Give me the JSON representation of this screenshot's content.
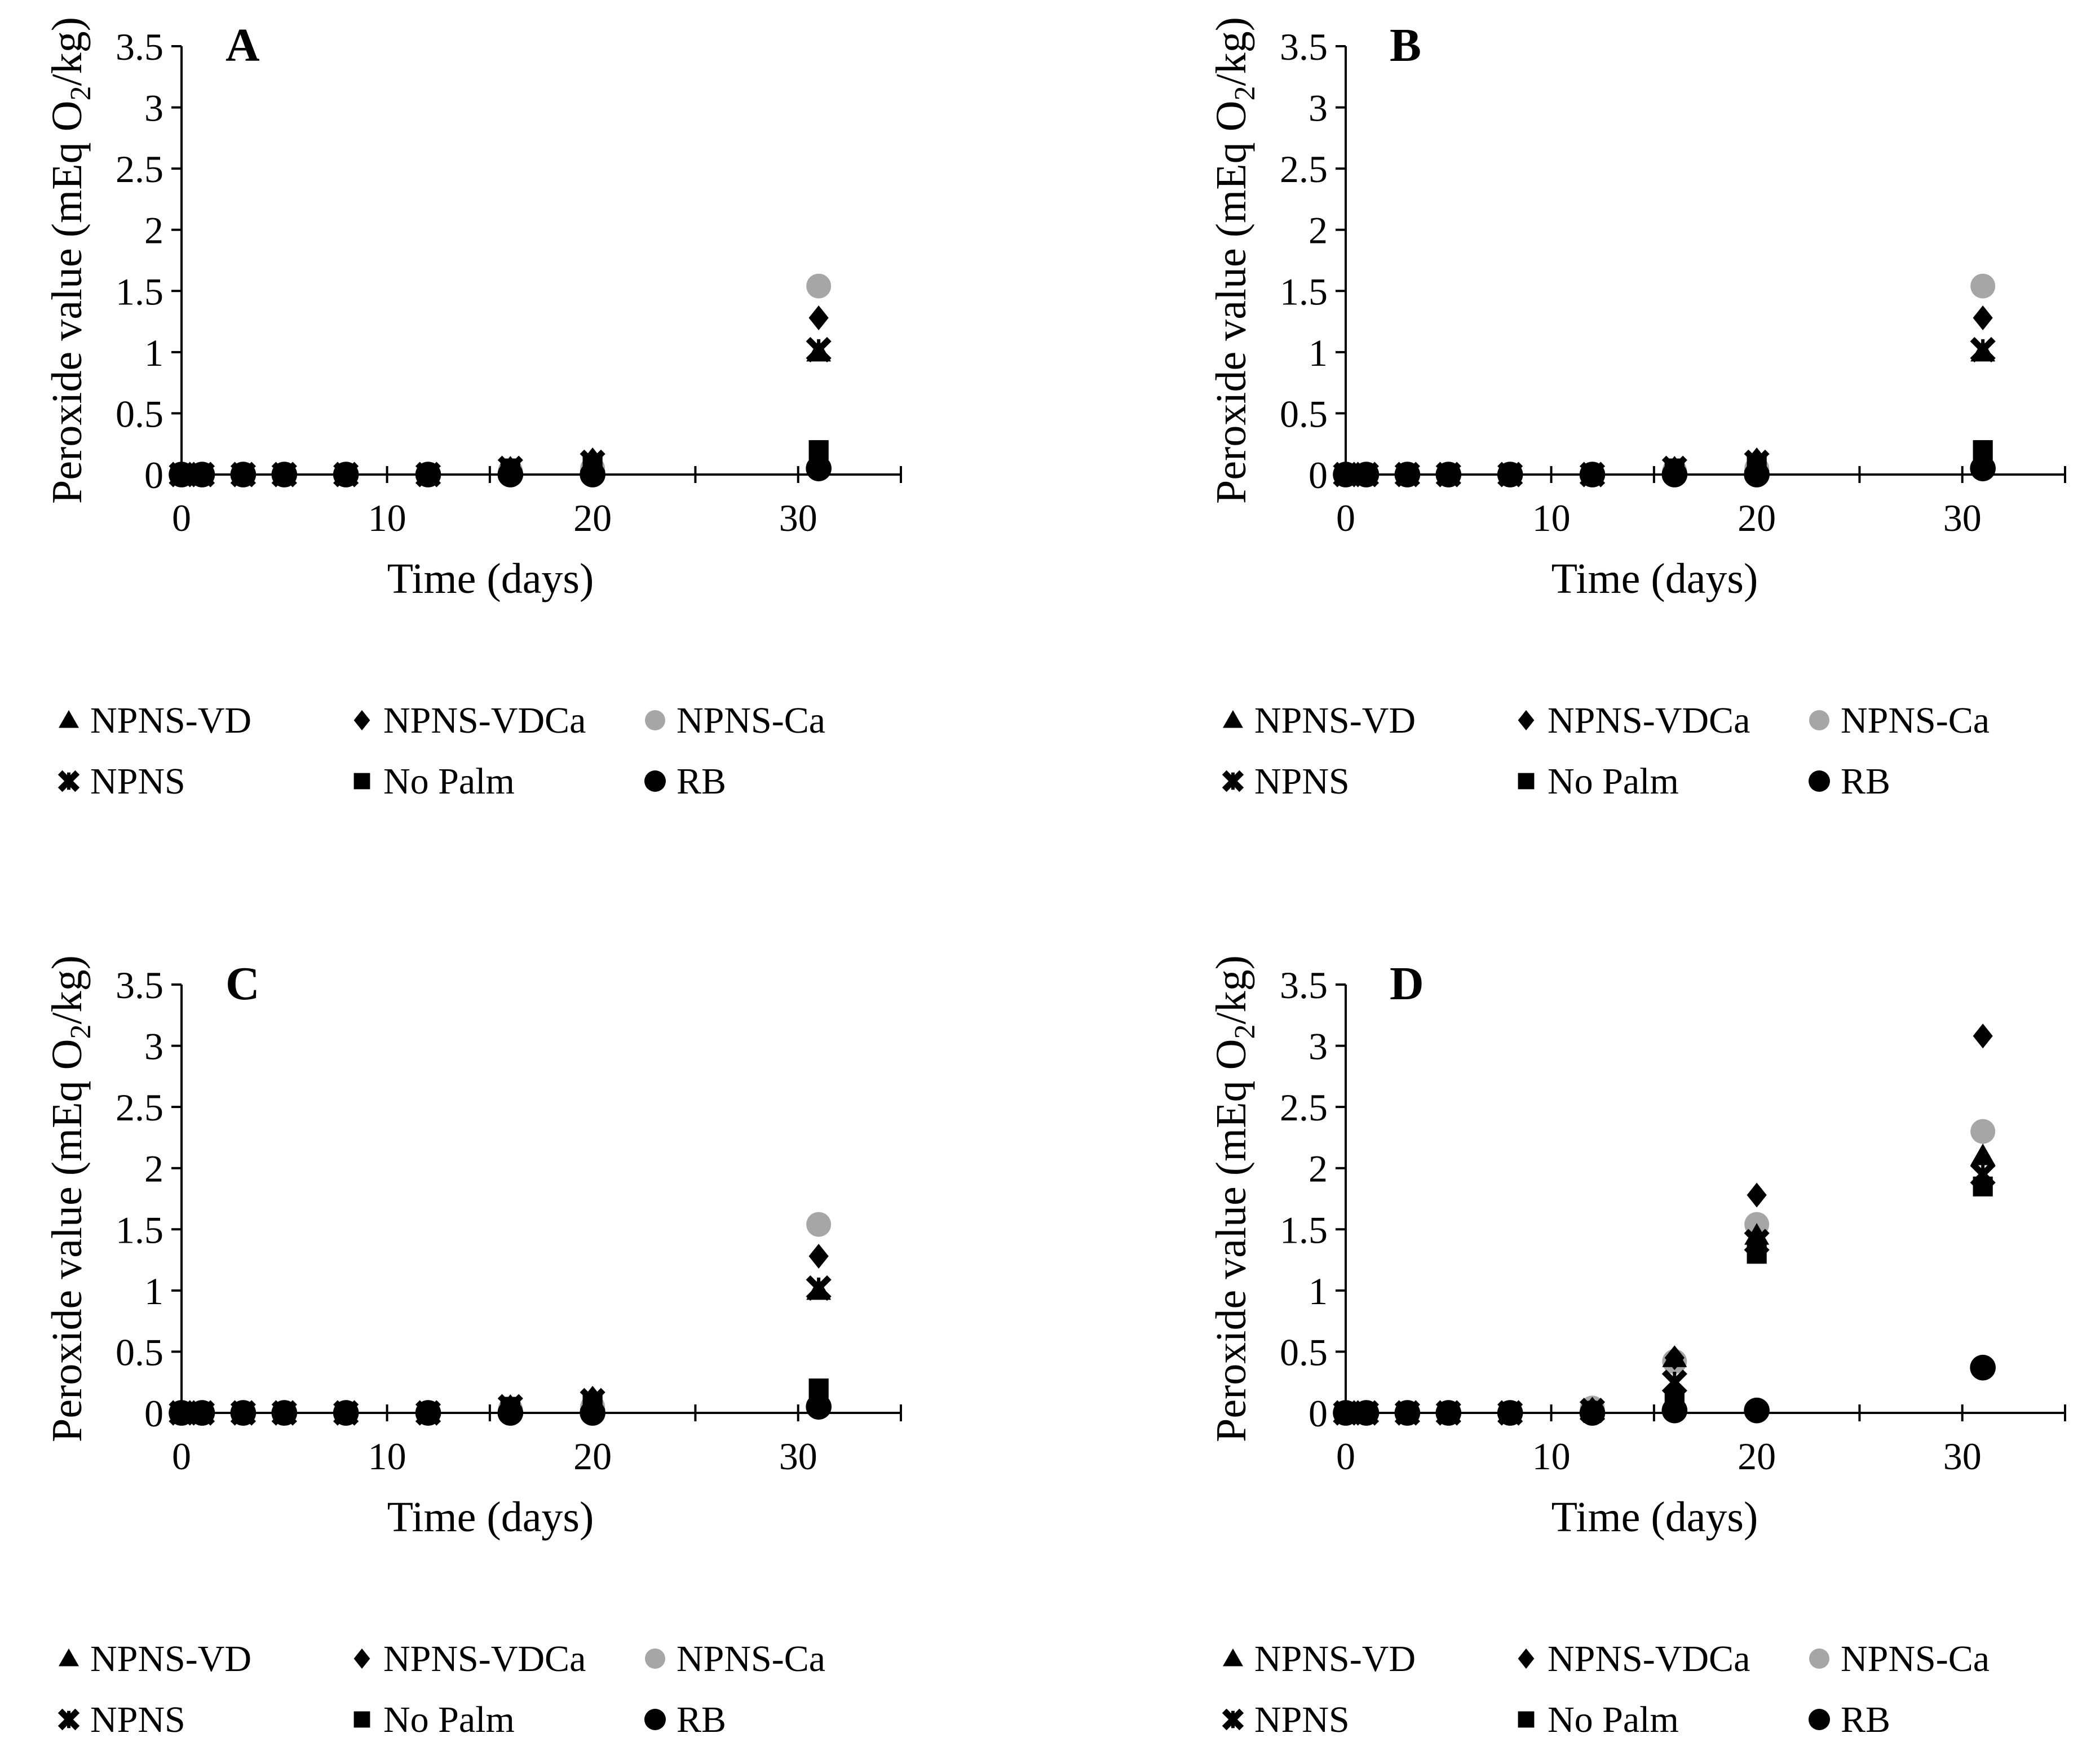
{
  "colors": {
    "black": "#000000",
    "gray": "#a6a6a6"
  },
  "legend_labels": {
    "npns_vd": "NPNS-VD",
    "npns_vdca": "NPNS-VDCa",
    "npns_ca": "NPNS-Ca",
    "npns": "NPNS",
    "no_palm": "No Palm",
    "rb": "RB"
  },
  "chart_data": [
    {
      "type": "scatter",
      "panel": "A",
      "xlabel": "Time (days)",
      "ylabel": "Peroxide value (mEq O2/kg)",
      "xlim": [
        0,
        35
      ],
      "ylim": [
        0,
        3.5
      ],
      "xticks": [
        "0",
        "10",
        "20",
        "30"
      ],
      "yticks": [
        "0",
        "0.5",
        "1",
        "1.5",
        "2",
        "2.5",
        "3",
        "3.5"
      ],
      "x": [
        0,
        1,
        3,
        5,
        8,
        12,
        16,
        20,
        31
      ],
      "series": [
        {
          "name": "NPNS-VD",
          "marker": "triangle",
          "color": "#000000",
          "values": [
            0,
            0,
            0,
            0,
            0,
            0,
            0.05,
            0.1,
            1.0
          ]
        },
        {
          "name": "NPNS-VDCa",
          "marker": "diamond",
          "color": "#000000",
          "values": [
            0,
            0,
            0,
            0,
            0,
            0,
            0.05,
            0.12,
            1.28
          ]
        },
        {
          "name": "NPNS-Ca",
          "marker": "circle",
          "color": "#a6a6a6",
          "values": [
            0,
            0,
            0,
            0,
            0,
            0,
            0.03,
            0.05,
            1.54
          ]
        },
        {
          "name": "NPNS",
          "marker": "x",
          "color": "#000000",
          "values": [
            0,
            0,
            0,
            0,
            0,
            0,
            0.05,
            0.1,
            1.02
          ]
        },
        {
          "name": "No Palm",
          "marker": "square",
          "color": "#000000",
          "values": [
            0,
            0,
            0,
            0,
            0,
            0,
            0.05,
            0.08,
            0.2
          ]
        },
        {
          "name": "RB",
          "marker": "dot",
          "color": "#000000",
          "values": [
            0,
            0,
            0,
            0,
            0,
            0,
            0,
            0,
            0.05
          ]
        }
      ]
    },
    {
      "type": "scatter",
      "panel": "B",
      "xlabel": "Time (days)",
      "ylabel": "Peroxide value (mEq O2/kg)",
      "xlim": [
        0,
        35
      ],
      "ylim": [
        0,
        3.5
      ],
      "xticks": [
        "0",
        "10",
        "20",
        "30"
      ],
      "yticks": [
        "0",
        "0.5",
        "1",
        "1.5",
        "2",
        "2.5",
        "3",
        "3.5"
      ],
      "x": [
        0,
        1,
        3,
        5,
        8,
        12,
        16,
        20,
        31
      ],
      "series": [
        {
          "name": "NPNS-VD",
          "marker": "triangle",
          "color": "#000000",
          "values": [
            0,
            0,
            0,
            0,
            0,
            0,
            0.05,
            0.1,
            1.0
          ]
        },
        {
          "name": "NPNS-VDCa",
          "marker": "diamond",
          "color": "#000000",
          "values": [
            0,
            0,
            0,
            0,
            0,
            0,
            0.05,
            0.12,
            1.28
          ]
        },
        {
          "name": "NPNS-Ca",
          "marker": "circle",
          "color": "#a6a6a6",
          "values": [
            0,
            0,
            0,
            0,
            0,
            0,
            0.03,
            0.05,
            1.54
          ]
        },
        {
          "name": "NPNS",
          "marker": "x",
          "color": "#000000",
          "values": [
            0,
            0,
            0,
            0,
            0,
            0,
            0.05,
            0.1,
            1.02
          ]
        },
        {
          "name": "No Palm",
          "marker": "square",
          "color": "#000000",
          "values": [
            0,
            0,
            0,
            0,
            0,
            0,
            0.05,
            0.08,
            0.2
          ]
        },
        {
          "name": "RB",
          "marker": "dot",
          "color": "#000000",
          "values": [
            0,
            0,
            0,
            0,
            0,
            0,
            0,
            0,
            0.05
          ]
        }
      ]
    },
    {
      "type": "scatter",
      "panel": "C",
      "xlabel": "Time (days)",
      "ylabel": "Peroxide value (mEq O2/kg)",
      "xlim": [
        0,
        35
      ],
      "ylim": [
        0,
        3.5
      ],
      "xticks": [
        "0",
        "10",
        "20",
        "30"
      ],
      "yticks": [
        "0",
        "0.5",
        "1",
        "1.5",
        "2",
        "2.5",
        "3",
        "3.5"
      ],
      "x": [
        0,
        1,
        3,
        5,
        8,
        12,
        16,
        20,
        31
      ],
      "series": [
        {
          "name": "NPNS-VD",
          "marker": "triangle",
          "color": "#000000",
          "values": [
            0,
            0,
            0,
            0,
            0,
            0,
            0.05,
            0.1,
            1.0
          ]
        },
        {
          "name": "NPNS-VDCa",
          "marker": "diamond",
          "color": "#000000",
          "values": [
            0,
            0,
            0,
            0,
            0,
            0,
            0.05,
            0.12,
            1.28
          ]
        },
        {
          "name": "NPNS-Ca",
          "marker": "circle",
          "color": "#a6a6a6",
          "values": [
            0,
            0,
            0,
            0,
            0,
            0,
            0.03,
            0.05,
            1.54
          ]
        },
        {
          "name": "NPNS",
          "marker": "x",
          "color": "#000000",
          "values": [
            0,
            0,
            0,
            0,
            0,
            0,
            0.05,
            0.1,
            1.02
          ]
        },
        {
          "name": "No Palm",
          "marker": "square",
          "color": "#000000",
          "values": [
            0,
            0,
            0,
            0,
            0,
            0,
            0.05,
            0.08,
            0.2
          ]
        },
        {
          "name": "RB",
          "marker": "dot",
          "color": "#000000",
          "values": [
            0,
            0,
            0,
            0,
            0,
            0,
            0,
            0,
            0.05
          ]
        }
      ]
    },
    {
      "type": "scatter",
      "panel": "D",
      "xlabel": "Time (days)",
      "ylabel": "Peroxide value (mEq O2/kg)",
      "xlim": [
        0,
        35
      ],
      "ylim": [
        0,
        3.5
      ],
      "xticks": [
        "0",
        "10",
        "20",
        "30"
      ],
      "yticks": [
        "0",
        "0.5",
        "1",
        "1.5",
        "2",
        "2.5",
        "3",
        "3.5"
      ],
      "x": [
        0,
        1,
        3,
        5,
        8,
        12,
        16,
        20,
        31
      ],
      "series": [
        {
          "name": "NPNS-VD",
          "marker": "triangle",
          "color": "#000000",
          "values": [
            0,
            0,
            0,
            0,
            0,
            0.02,
            0.45,
            1.45,
            2.1
          ]
        },
        {
          "name": "NPNS-VDCa",
          "marker": "diamond",
          "color": "#000000",
          "values": [
            0,
            0,
            0,
            0,
            0,
            0.03,
            0.45,
            1.78,
            3.08
          ]
        },
        {
          "name": "NPNS-Ca",
          "marker": "circle",
          "color": "#a6a6a6",
          "values": [
            0,
            0,
            0,
            0,
            0,
            0.04,
            0.42,
            1.54,
            2.3
          ]
        },
        {
          "name": "NPNS",
          "marker": "x",
          "color": "#000000",
          "values": [
            0,
            0,
            0,
            0,
            0,
            0.02,
            0.25,
            1.4,
            1.95
          ]
        },
        {
          "name": "No Palm",
          "marker": "square",
          "color": "#000000",
          "values": [
            0,
            0,
            0,
            0,
            0,
            0.01,
            0.12,
            1.3,
            1.85
          ]
        },
        {
          "name": "RB",
          "marker": "dot",
          "color": "#000000",
          "values": [
            0,
            0,
            0,
            0,
            0,
            0,
            0.02,
            0.02,
            0.37
          ]
        }
      ]
    }
  ]
}
